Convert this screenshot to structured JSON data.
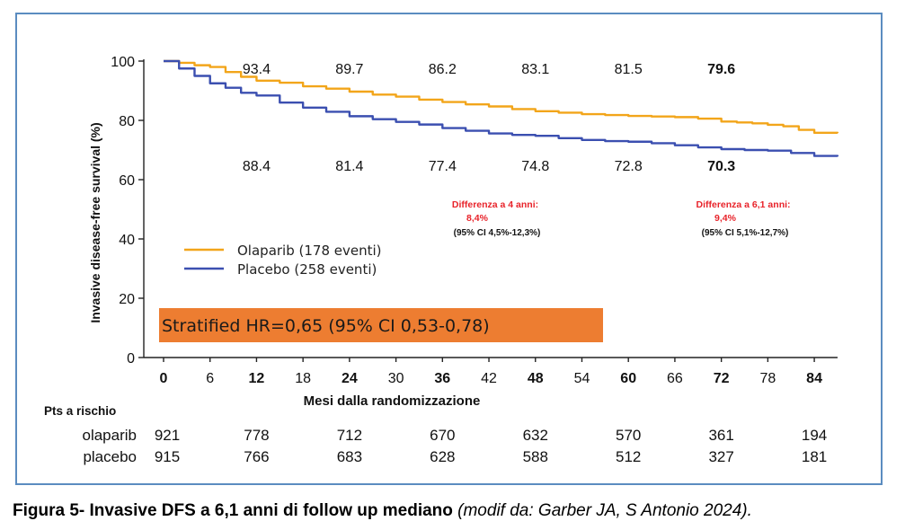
{
  "chart_data": {
    "type": "line",
    "ylabel": "Invasive disease-free survival (%)",
    "xlabel": "Mesi dalla randomizzazione",
    "xlim": [
      0,
      87
    ],
    "ylim": [
      0,
      100
    ],
    "x_ticks": [
      0,
      6,
      12,
      18,
      24,
      30,
      36,
      42,
      48,
      54,
      60,
      66,
      72,
      78,
      84
    ],
    "x_ticks_bold": [
      0,
      12,
      24,
      36,
      48,
      60,
      72,
      84
    ],
    "y_ticks": [
      0,
      20,
      40,
      60,
      80,
      100
    ],
    "series": [
      {
        "name": "Olaparib (178 eventi)",
        "color": "#f2a51a",
        "x": [
          0,
          2,
          4,
          6,
          8,
          10,
          12,
          15,
          18,
          21,
          24,
          27,
          30,
          33,
          36,
          39,
          42,
          45,
          48,
          51,
          54,
          57,
          60,
          63,
          66,
          69,
          72,
          74,
          76,
          78,
          80,
          82,
          84,
          87
        ],
        "y": [
          100,
          99.4,
          98.6,
          98,
          96.3,
          94.7,
          93.4,
          92.7,
          91.5,
          90.7,
          89.7,
          88.7,
          88,
          87,
          86.2,
          85.4,
          84.7,
          83.8,
          83.1,
          82.6,
          82.1,
          81.8,
          81.5,
          81.3,
          81.1,
          80.6,
          79.6,
          79.3,
          79,
          78.5,
          78,
          76.8,
          75.8,
          75.7
        ]
      },
      {
        "name": "Placebo (258 eventi)",
        "color": "#3b4fb0",
        "x": [
          0,
          2,
          4,
          6,
          8,
          10,
          12,
          15,
          18,
          21,
          24,
          27,
          30,
          33,
          36,
          39,
          42,
          45,
          48,
          51,
          54,
          57,
          60,
          63,
          66,
          69,
          72,
          75,
          78,
          81,
          84,
          87
        ],
        "y": [
          100,
          97.5,
          95,
          92.5,
          91,
          89.3,
          88.4,
          86,
          84.3,
          82.9,
          81.4,
          80.4,
          79.5,
          78.6,
          77.4,
          76.5,
          75.6,
          75.1,
          74.8,
          74,
          73.4,
          73,
          72.8,
          72.3,
          71.6,
          70.9,
          70.3,
          70,
          69.8,
          69,
          68,
          67.8
        ]
      }
    ],
    "annotations_upper": [
      {
        "x": 12,
        "label": "93.4"
      },
      {
        "x": 24,
        "label": "89.7"
      },
      {
        "x": 36,
        "label": "86.2"
      },
      {
        "x": 48,
        "label": "83.1"
      },
      {
        "x": 60,
        "label": "81.5"
      },
      {
        "x": 72,
        "label": "79.6",
        "bold": true
      }
    ],
    "annotations_lower": [
      {
        "x": 12,
        "label": "88.4"
      },
      {
        "x": 24,
        "label": "81.4"
      },
      {
        "x": 36,
        "label": "77.4"
      },
      {
        "x": 48,
        "label": "74.8"
      },
      {
        "x": 60,
        "label": "72.8"
      },
      {
        "x": 72,
        "label": "70.3",
        "bold": true
      }
    ],
    "differences": [
      {
        "line1": "Differenza  a 4 anni:",
        "line2": "8,4%",
        "ci": "(95% CI 4,5%-12,3%)"
      },
      {
        "line1": "Differenza a 6,1 anni:",
        "line2": "9,4%",
        "ci": "(95% CI 5,1%-12,7%)"
      }
    ],
    "hr_text": "Stratified HR=0,65 (95% CI 0,53-0,78)",
    "risk_table": {
      "title": "Pts a rischio",
      "rows": [
        {
          "label": "olaparib",
          "values": [
            "921",
            "778",
            "712",
            "670",
            "632",
            "570",
            "361",
            "194"
          ]
        },
        {
          "label": "placebo",
          "values": [
            "915",
            "766",
            "683",
            "628",
            "588",
            "512",
            "327",
            "181"
          ]
        }
      ]
    },
    "colors": {
      "annotation_red": "#e8232a",
      "hr_box": "#ed7d31",
      "frame": "#5b8cc0"
    }
  },
  "caption": {
    "bold": "Figura 5- Invasive DFS a 6,1 anni di follow up mediano",
    "italic": "(modif da: Garber JA, S Antonio 2024)."
  }
}
